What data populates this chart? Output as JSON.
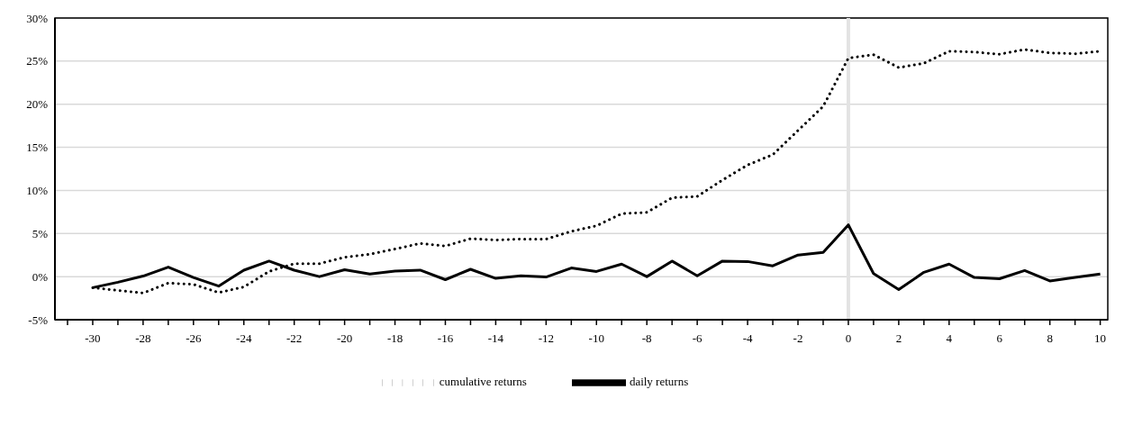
{
  "chart_data": {
    "type": "line",
    "x": [
      -30,
      -29,
      -28,
      -27,
      -26,
      -25,
      -24,
      -23,
      -22,
      -21,
      -20,
      -19,
      -18,
      -17,
      -16,
      -15,
      -14,
      -13,
      -12,
      -11,
      -10,
      -9,
      -8,
      -7,
      -6,
      -5,
      -4,
      -3,
      -2,
      -1,
      0,
      1,
      2,
      3,
      4,
      5,
      6,
      7,
      8,
      9,
      10
    ],
    "series": [
      {
        "name": "daily returns",
        "color": "#000000",
        "line_style": "solid",
        "values": [
          -1.28,
          -0.65,
          0.06,
          1.1,
          -0.1,
          -1.1,
          0.75,
          1.8,
          0.75,
          0,
          0.8,
          0.3,
          0.65,
          0.75,
          -0.35,
          0.85,
          -0.2,
          0.1,
          -0.05,
          1.0,
          0.6,
          1.45,
          0,
          1.8,
          0.1,
          1.8,
          1.75,
          1.25,
          2.5,
          2.8,
          6.0,
          0.35,
          -1.5,
          0.5,
          1.45,
          -0.1,
          -0.25,
          0.7,
          -0.5,
          -0.1,
          0.3
        ]
      },
      {
        "name": "cumulative returns",
        "color": "#000000",
        "line_style": "dotted",
        "values": [
          -1.28,
          -1.6,
          -1.9,
          -0.75,
          -0.9,
          -1.85,
          -1.2,
          0.6,
          1.5,
          1.5,
          2.25,
          2.6,
          3.2,
          3.85,
          3.55,
          4.4,
          4.25,
          4.35,
          4.35,
          5.25,
          5.9,
          7.3,
          7.45,
          9.15,
          9.3,
          11.2,
          12.95,
          14.15,
          16.95,
          19.75,
          25.35,
          25.75,
          24.25,
          24.75,
          26.15,
          26.05,
          25.8,
          26.35,
          25.95,
          25.85,
          26.15
        ]
      }
    ],
    "xlim": [
      -31.5,
      10.3
    ],
    "xticks": [
      {
        "value": -31,
        "label": null
      },
      -30,
      {
        "value": -29,
        "label": null
      },
      -28,
      {
        "value": -27,
        "label": null
      },
      -26,
      {
        "value": -25,
        "label": null
      },
      -24,
      {
        "value": -23,
        "label": null
      },
      -22,
      {
        "value": -21,
        "label": null
      },
      -20,
      {
        "value": -19,
        "label": null
      },
      -18,
      {
        "value": -17,
        "label": null
      },
      -16,
      {
        "value": -15,
        "label": null
      },
      -14,
      {
        "value": -13,
        "label": null
      },
      -12,
      {
        "value": -11,
        "label": null
      },
      -10,
      {
        "value": -9,
        "label": null
      },
      -8,
      {
        "value": -7,
        "label": null
      },
      -6,
      {
        "value": -5,
        "label": null
      },
      -4,
      {
        "value": -3,
        "label": null
      },
      -2,
      {
        "value": -1,
        "label": null
      },
      0,
      {
        "value": 1,
        "label": null
      },
      2,
      {
        "value": 3,
        "label": null
      },
      4,
      {
        "value": 5,
        "label": null
      },
      6,
      {
        "value": 7,
        "label": null
      },
      8,
      {
        "value": 9,
        "label": null
      },
      10
    ],
    "ylim": [
      -5,
      30
    ],
    "yticks": [
      {
        "value": -5,
        "label": "-5%"
      },
      {
        "value": 0,
        "label": "0%"
      },
      {
        "value": 5,
        "label": "5%"
      },
      {
        "value": 10,
        "label": "10%"
      },
      {
        "value": 15,
        "label": "15%"
      },
      {
        "value": 20,
        "label": "20%"
      },
      {
        "value": 25,
        "label": "25%"
      },
      {
        "value": 30,
        "label": "30%"
      }
    ],
    "ref_lines": [
      {
        "axis": "x",
        "value": 0,
        "label": null,
        "color": "#e3e3e3"
      }
    ],
    "grid": "y",
    "legend": "bottom",
    "marker": "none"
  }
}
